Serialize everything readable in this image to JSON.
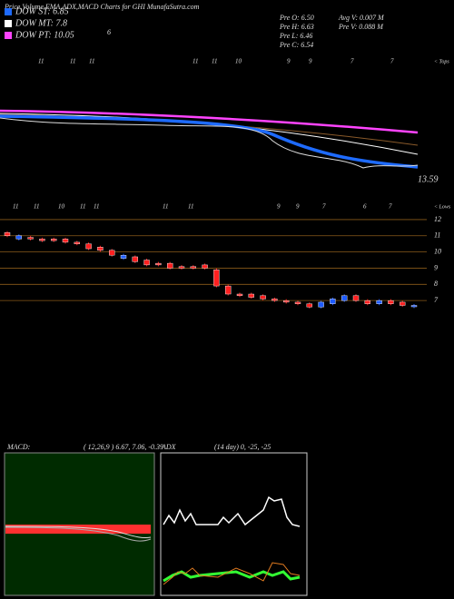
{
  "chart_data": {
    "type": "candlestick",
    "title": "Price,Volume,EMA,ADX,MACD Charts for GHI MunafaSutra.com",
    "legend": [
      "DOW ST: 6.85",
      "DOW MT: 7.8",
      "DOW PT: 10.05"
    ],
    "legend_colors": [
      "#1e6bff",
      "#ffffff",
      "#ff44ff"
    ],
    "side_label": "6",
    "info": [
      "Pre  O: 6.50",
      "Pre  H: 6.63",
      "Pre  L: 6.46",
      "Pre  C: 6.54",
      "Avg V: 0.007 M",
      "Pre  V: 0.088 M"
    ],
    "tops_label": "< Tops",
    "lows_label": "< Lows",
    "ema_label": "13.59",
    "top_dates": [
      "11",
      "11",
      "11",
      "11",
      "11",
      "10",
      "9",
      "9",
      "7",
      "7"
    ],
    "low_dates": [
      "11",
      "11",
      "10",
      "11",
      "11",
      "11",
      "11",
      "9",
      "9",
      "7",
      "6",
      "7"
    ],
    "open": [
      11.2,
      10.8,
      10.9,
      10.8,
      10.8,
      10.8,
      10.6,
      10.5,
      10.3,
      10.1,
      9.6,
      9.7,
      9.5,
      9.3,
      9.3,
      9.1,
      9.1,
      9.2,
      8.9,
      7.9,
      7.4,
      7.4,
      7.3,
      7.1,
      7.0,
      6.9,
      6.8,
      6.6,
      6.8,
      7.0,
      7.3,
      7.0,
      6.8,
      7.0,
      6.9,
      6.7
    ],
    "close": [
      11.0,
      11.0,
      10.8,
      10.7,
      10.7,
      10.6,
      10.5,
      10.2,
      10.1,
      9.8,
      9.8,
      9.4,
      9.2,
      9.2,
      9.0,
      9.0,
      9.0,
      9.0,
      7.9,
      7.4,
      7.3,
      7.2,
      7.1,
      7.0,
      6.9,
      6.8,
      6.6,
      6.9,
      7.1,
      7.3,
      7.0,
      6.8,
      7.0,
      6.8,
      6.7,
      6.7
    ],
    "up_color": "#1e5bff",
    "down_color": "#ff2020",
    "ylim": [
      6,
      12.5
    ],
    "yticks": [
      7,
      8,
      9,
      10,
      11,
      12
    ],
    "grid": true,
    "macd_title": "MACD:",
    "macd_params": "( 12,26,9 ) 6.67, 7.06, -0.39",
    "adx_title": "ADX",
    "adx_params": "(14  day) 0, -25, -25"
  }
}
